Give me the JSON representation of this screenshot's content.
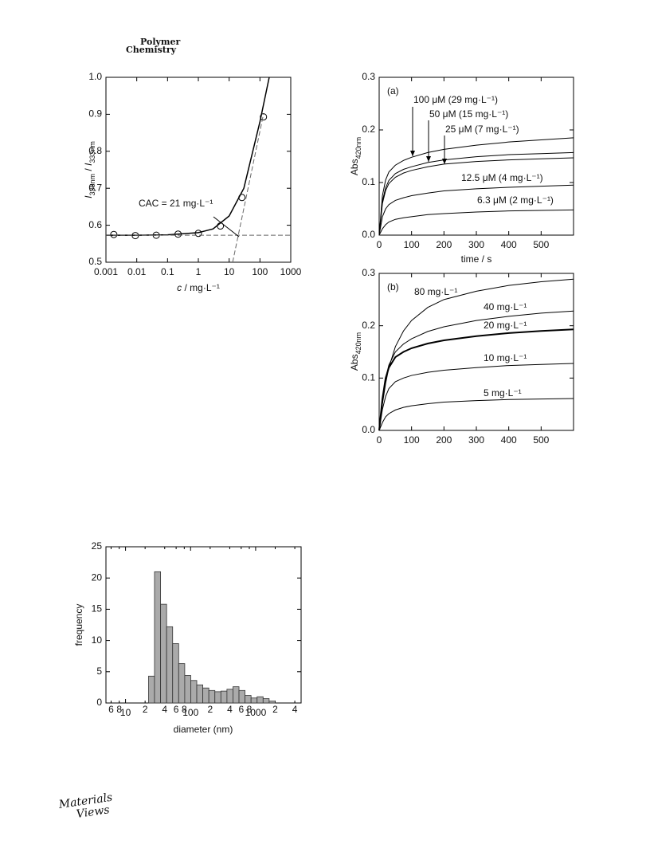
{
  "header": {
    "journal": [
      "Polymer",
      "Chemistry"
    ]
  },
  "chart_data": [
    {
      "type": "scatter",
      "xlabel": [
        {
          "text": "c",
          "italic": true
        },
        {
          "text": " / mg·L⁻¹"
        }
      ],
      "ylabel": [
        {
          "text": "I",
          "italic": true
        },
        {
          "text": "338nm",
          "sub": true
        },
        {
          "text": " / "
        },
        {
          "text": "I",
          "italic": true
        },
        {
          "text": "333nm",
          "sub": true
        }
      ],
      "xscale": "log",
      "xlim": [
        0.001,
        1000
      ],
      "xticks": [
        0.001,
        0.01,
        0.1,
        1,
        10,
        100,
        1000
      ],
      "ylim": [
        0.5,
        1.0
      ],
      "yticks": [
        0.5,
        0.6,
        0.7,
        0.8,
        0.9,
        {
          "value": 1,
          "label": "1.0"
        }
      ],
      "series": [
        {
          "style": "markers",
          "color": "#000000",
          "x": [
            0.0018,
            0.009,
            0.043,
            0.22,
            1.0,
            5.2,
            26,
            130
          ],
          "values": [
            0.575,
            0.572,
            0.573,
            0.576,
            0.578,
            0.598,
            0.675,
            0.893
          ]
        },
        {
          "style": "line",
          "color": "#000000",
          "x": [
            0.001,
            0.01,
            0.1,
            1,
            3,
            10,
            30,
            100,
            200
          ],
          "values": [
            0.573,
            0.573,
            0.574,
            0.58,
            0.59,
            0.625,
            0.7,
            0.88,
            1.0
          ]
        },
        {
          "style": "dashed",
          "color": "#666666",
          "x": [
            0.001,
            1000
          ],
          "values": [
            0.573,
            0.573
          ]
        },
        {
          "style": "dashed",
          "color": "#666666",
          "x": [
            13,
            130
          ],
          "values": [
            0.5,
            0.9
          ]
        }
      ],
      "annotation": "CAC = 21 mg·L⁻¹"
    },
    {
      "type": "line",
      "panel_label": "(a)",
      "xlabel": [
        {
          "text": "time / s"
        }
      ],
      "ylabel": [
        {
          "text": "Abs"
        },
        {
          "text": "420nm",
          "sub": true
        }
      ],
      "x": [
        0,
        10,
        20,
        30,
        50,
        75,
        100,
        150,
        200,
        300,
        400,
        500,
        600
      ],
      "xlim": [
        0,
        600
      ],
      "xticks": [
        0,
        100,
        200,
        300,
        400,
        500
      ],
      "ylim": [
        0,
        0.3
      ],
      "yticks": [
        {
          "value": 0,
          "label": "0.0"
        },
        0.1,
        0.2,
        0.3
      ],
      "series": [
        {
          "name": "100 μM (29 mg·L⁻¹)",
          "color": "#000000",
          "values": [
            0,
            0.075,
            0.105,
            0.12,
            0.133,
            0.142,
            0.148,
            0.157,
            0.163,
            0.171,
            0.177,
            0.181,
            0.185
          ]
        },
        {
          "name": "50 μM (15 mg·L⁻¹)",
          "color": "#000000",
          "values": [
            0,
            0.065,
            0.09,
            0.104,
            0.117,
            0.125,
            0.13,
            0.138,
            0.143,
            0.149,
            0.153,
            0.155,
            0.157
          ]
        },
        {
          "name": "25 μM (7 mg·L⁻¹)",
          "color": "#000000",
          "values": [
            0,
            0.06,
            0.085,
            0.098,
            0.11,
            0.118,
            0.123,
            0.13,
            0.135,
            0.14,
            0.143,
            0.145,
            0.147
          ]
        },
        {
          "name": "12.5 μM (4 mg·L⁻¹)",
          "color": "#000000",
          "values": [
            0,
            0.035,
            0.05,
            0.058,
            0.066,
            0.071,
            0.075,
            0.08,
            0.084,
            0.088,
            0.091,
            0.093,
            0.095
          ]
        },
        {
          "name": "6.3 μM (2 mg·L⁻¹)",
          "color": "#000000",
          "values": [
            0,
            0.012,
            0.02,
            0.025,
            0.03,
            0.033,
            0.035,
            0.039,
            0.041,
            0.044,
            0.046,
            0.047,
            0.048
          ]
        }
      ]
    },
    {
      "type": "line",
      "panel_label": "(b)",
      "ylabel": [
        {
          "text": "Abs"
        },
        {
          "text": "420nm",
          "sub": true
        }
      ],
      "x": [
        0,
        10,
        20,
        30,
        50,
        75,
        100,
        150,
        200,
        300,
        400,
        500,
        600
      ],
      "xlim": [
        0,
        600
      ],
      "xticks": [
        0,
        100,
        200,
        300,
        400,
        500
      ],
      "ylim": [
        0,
        0.3
      ],
      "yticks": [
        {
          "value": 0,
          "label": "0.0"
        },
        0.1,
        0.2,
        0.3
      ],
      "series": [
        {
          "name": "80 mg·L⁻¹",
          "color": "#000000",
          "values": [
            0,
            0.05,
            0.09,
            0.12,
            0.16,
            0.19,
            0.21,
            0.235,
            0.25,
            0.266,
            0.277,
            0.284,
            0.289
          ]
        },
        {
          "name": "40 mg·L⁻¹",
          "color": "#000000",
          "values": [
            0,
            0.06,
            0.1,
            0.125,
            0.15,
            0.165,
            0.175,
            0.189,
            0.198,
            0.21,
            0.218,
            0.224,
            0.228
          ]
        },
        {
          "name": "20 mg·L⁻¹",
          "color": "#000000",
          "line_width": 2,
          "values": [
            0,
            0.06,
            0.1,
            0.12,
            0.14,
            0.15,
            0.157,
            0.166,
            0.172,
            0.18,
            0.186,
            0.19,
            0.193
          ]
        },
        {
          "name": "10 mg·L⁻¹",
          "color": "#000000",
          "values": [
            0,
            0.04,
            0.065,
            0.08,
            0.093,
            0.1,
            0.105,
            0.111,
            0.115,
            0.12,
            0.124,
            0.126,
            0.128
          ]
        },
        {
          "name": "5 mg·L⁻¹",
          "color": "#000000",
          "values": [
            0,
            0.015,
            0.026,
            0.032,
            0.039,
            0.044,
            0.047,
            0.051,
            0.054,
            0.057,
            0.059,
            0.06,
            0.061
          ]
        }
      ]
    },
    {
      "type": "histogram",
      "xlabel": [
        {
          "text": "diameter (nm)"
        }
      ],
      "ylabel": [
        {
          "text": "frequency"
        }
      ],
      "xscale": "log",
      "xlim": [
        5,
        5000
      ],
      "xticks": [
        {
          "value": 6,
          "label": "6"
        },
        {
          "value": 8,
          "label": "8"
        },
        10,
        {
          "value": 20,
          "label": "2"
        },
        {
          "value": 40,
          "label": "4"
        },
        {
          "value": 60,
          "label": "6"
        },
        {
          "value": 80,
          "label": "8"
        },
        100,
        {
          "value": 200,
          "label": "2"
        },
        {
          "value": 400,
          "label": "4"
        },
        {
          "value": 600,
          "label": "6"
        },
        {
          "value": 800,
          "label": "8"
        },
        1000,
        {
          "value": 2000,
          "label": "2"
        },
        {
          "value": 4000,
          "label": "4"
        }
      ],
      "ylim": [
        0,
        25
      ],
      "yticks": [
        0,
        5,
        10,
        15,
        20,
        25
      ],
      "color": "#aaaaaa",
      "bins": [
        22.6,
        27.9,
        34.6,
        42.8,
        53.0,
        65.6,
        81.3,
        100.6,
        124.5,
        154.2,
        190.9,
        236.3,
        292.5,
        362.2,
        448.3,
        555.0,
        687.1,
        850.6,
        1053,
        1303,
        1613,
        1997
      ],
      "values": [
        4.3,
        21,
        15.8,
        12.2,
        9.5,
        6.3,
        4.4,
        3.6,
        2.9,
        2.4,
        2.0,
        1.8,
        1.9,
        2.2,
        2.6,
        2.0,
        1.2,
        0.8,
        1.0,
        0.7,
        0.3
      ]
    }
  ],
  "footer": {
    "logo": [
      "Materials",
      "Views"
    ]
  }
}
